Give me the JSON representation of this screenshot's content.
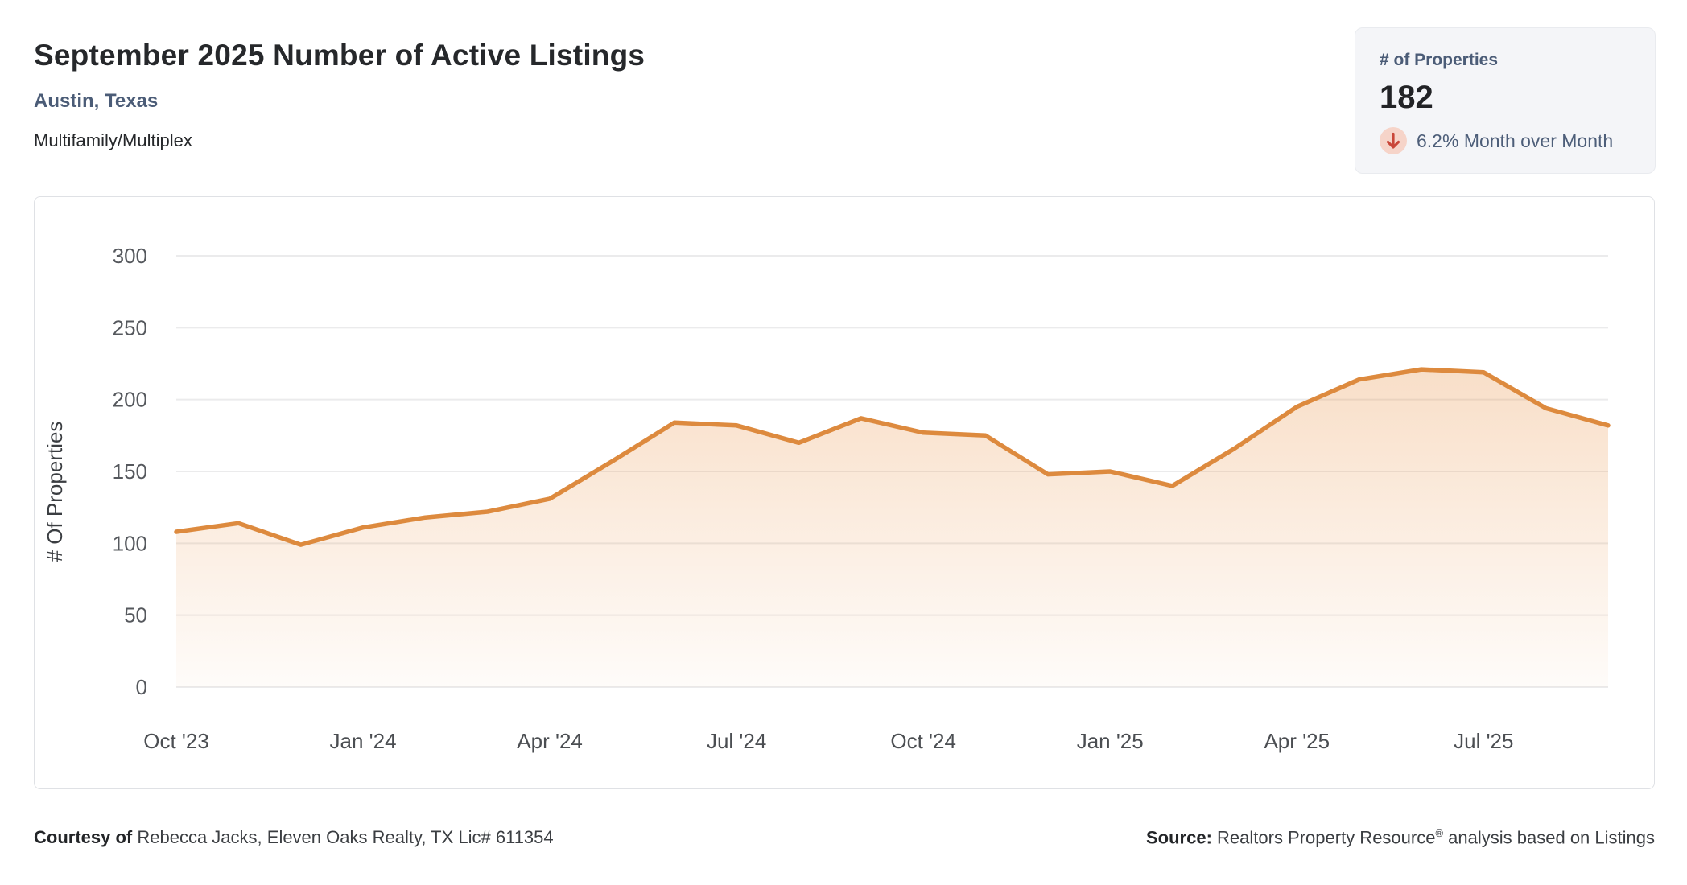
{
  "header": {
    "title": "September 2025 Number of Active Listings",
    "location": "Austin, Texas",
    "property_type": "Multifamily/Multiplex"
  },
  "stats_card": {
    "label": "# of Properties",
    "value": "182",
    "change_text": "6.2% Month over Month",
    "change_direction": "down",
    "arrow_icon": "arrow-down-icon",
    "colors": {
      "card_bg": "#f4f5f8",
      "accent_slate": "#4b5c77",
      "value_color": "#222326",
      "arrow_red": "#c9473a",
      "arrow_bg": "#f6d4c9"
    }
  },
  "chart_data": {
    "type": "area",
    "title": "September 2025 Number of Active Listings — Austin, Texas — Multifamily/Multiplex",
    "ylabel": "# Of Properties",
    "xlabel": "",
    "x": [
      "Oct '23",
      "Nov '23",
      "Dec '23",
      "Jan '24",
      "Feb '24",
      "Mar '24",
      "Apr '24",
      "May '24",
      "Jun '24",
      "Jul '24",
      "Aug '24",
      "Sep '24",
      "Oct '24",
      "Nov '24",
      "Dec '24",
      "Jan '25",
      "Feb '25",
      "Mar '25",
      "Apr '25",
      "May '25",
      "Jun '25",
      "Jul '25",
      "Aug '25",
      "Sep '25"
    ],
    "values": [
      108,
      114,
      99,
      111,
      118,
      122,
      131,
      157,
      184,
      182,
      170,
      187,
      177,
      175,
      148,
      150,
      140,
      166,
      195,
      214,
      221,
      219,
      194,
      182
    ],
    "x_tick_labels": [
      "Oct '23",
      "Jan '24",
      "Apr '24",
      "Jul '24",
      "Oct '24",
      "Jan '25",
      "Apr '25",
      "Jul '25"
    ],
    "x_tick_indices": [
      0,
      3,
      6,
      9,
      12,
      15,
      18,
      21
    ],
    "y_ticks": [
      0,
      50,
      100,
      150,
      200,
      250,
      300
    ],
    "ylim": [
      0,
      300
    ],
    "grid": true,
    "legend": "none",
    "line_color": "#dd8a3e",
    "fill_top": "rgba(233,148,73,0.30)",
    "fill_bottom": "rgba(233,148,73,0.03)",
    "gridline_color": "#ebebec",
    "tick_color": "#55585d",
    "ylabel_color": "#3a3d41"
  },
  "footer": {
    "courtesy_label": "Courtesy of",
    "courtesy_text": " Rebecca Jacks, Eleven Oaks Realty, TX Lic# 611354",
    "source_label": "Source:",
    "source_text_pre": " Realtors Property Resource",
    "source_reg_mark": "®",
    "source_text_post": " analysis based on Listings"
  }
}
